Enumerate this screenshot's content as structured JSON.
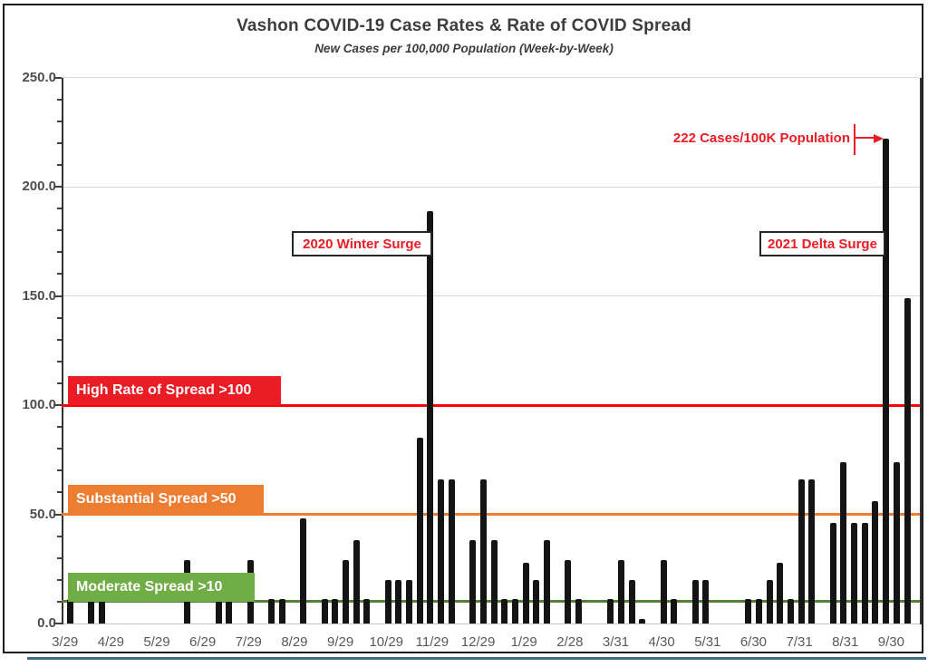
{
  "title": "Vashon COVID-19 Case Rates & Rate of COVID Spread",
  "subtitle": "New Cases per 100,000 Population (Week-by-Week)",
  "chart_data": {
    "type": "bar",
    "title": "Vashon COVID-19 Case Rates & Rate of COVID Spread",
    "subtitle": "New Cases per 100,000 Population (Week-by-Week)",
    "y_axis": {
      "min": 0,
      "max": 250,
      "major_tick": 50,
      "minor_tick": 10,
      "tick_labels": [
        "0.0",
        "50.0",
        "100.0",
        "150.0",
        "200.0",
        "250.0"
      ],
      "tick_values": [
        0,
        50,
        100,
        150,
        200,
        250
      ]
    },
    "x_labels": [
      "3/29",
      "4/29",
      "5/29",
      "6/29",
      "7/29",
      "8/29",
      "9/29",
      "10/29",
      "11/29",
      "12/29",
      "1/29",
      "2/28",
      "3/31",
      "4/30",
      "5/31",
      "6/30",
      "7/31",
      "8/31",
      "9/30"
    ],
    "weekly_values": [
      11,
      0,
      11,
      11,
      0,
      0,
      0,
      0,
      0,
      0,
      0,
      29,
      0,
      0,
      11,
      11,
      0,
      29,
      0,
      11,
      11,
      0,
      48,
      0,
      11,
      11,
      29,
      38,
      11,
      0,
      20,
      20,
      20,
      85,
      189,
      66,
      66,
      0,
      38,
      66,
      38,
      11,
      11,
      28,
      20,
      38,
      0,
      29,
      11,
      0,
      0,
      11,
      29,
      20,
      2,
      0,
      29,
      11,
      0,
      20,
      20,
      0,
      0,
      0,
      11,
      11,
      20,
      28,
      11,
      66,
      66,
      0,
      46,
      74,
      46,
      46,
      56,
      222,
      74,
      149
    ],
    "bar_color": "#141414",
    "thresholds": [
      {
        "label": "High Rate of Spread >100",
        "value": 100,
        "line_color": "#fe0000",
        "box_color": "#ec1c24"
      },
      {
        "label": "Substantial Spread >50",
        "value": 50,
        "line_color": "#ed7d31",
        "box_color": "#ed7d31"
      },
      {
        "label": "Moderate Spread >10",
        "value": 10,
        "line_color": "#538135",
        "box_color": "#70ad47"
      }
    ],
    "annotations": {
      "winter_surge": "2020 Winter Surge",
      "delta_surge": "2021 Delta Surge",
      "peak_callout": "222 Cases/100K Population",
      "peak_value": 222
    },
    "legend_position": "none",
    "grid": "horizontal-major"
  }
}
